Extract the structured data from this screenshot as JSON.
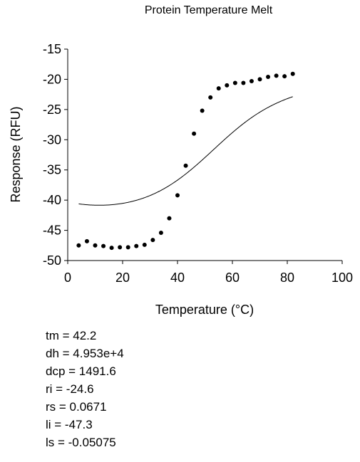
{
  "chart_data": {
    "type": "scatter",
    "title": "Protein Temperature Melt",
    "xlabel": "Temperature (°C)",
    "ylabel": "Response (RFU)",
    "xlim": [
      0,
      100
    ],
    "ylim": [
      -50,
      -15
    ],
    "xticks": [
      0,
      20,
      40,
      60,
      80,
      100
    ],
    "yticks": [
      -15,
      -20,
      -25,
      -30,
      -35,
      -40,
      -45,
      -50
    ],
    "grid": false,
    "legend": "none",
    "series": [
      {
        "kind": "points",
        "x": [
          4,
          7,
          10,
          13,
          16,
          19,
          22,
          25,
          28,
          31,
          34,
          37,
          40,
          43,
          46,
          49,
          52,
          55,
          58,
          61,
          64,
          67,
          70,
          73,
          76,
          79,
          82
        ],
        "y": [
          -47.5,
          -46.8,
          -47.5,
          -47.6,
          -47.9,
          -47.8,
          -47.8,
          -47.6,
          -47.4,
          -46.6,
          -45.4,
          -43.0,
          -39.2,
          -34.3,
          -29.0,
          -25.2,
          -23.0,
          -21.5,
          -21.0,
          -20.6,
          -20.6,
          -20.3,
          -20.0,
          -19.6,
          -19.4,
          -19.5,
          -19.1
        ]
      },
      {
        "kind": "fit",
        "params": {
          "tm": 42.2,
          "dh": 49530,
          "dcp": 1491.6,
          "ri": -24.6,
          "rs": 0.0671,
          "li": -47.3,
          "ls": -0.05075
        },
        "x_range": [
          4,
          82
        ]
      }
    ],
    "annotations": [
      "tm = 42.2",
      "dh = 4.953e+4",
      "dcp = 1491.6",
      "ri = -24.6",
      "rs = 0.0671",
      "li = -47.3",
      "ls = -0.05075"
    ]
  },
  "colors": {
    "points": "#000000",
    "fit": "#000000",
    "axis": "#000000"
  }
}
